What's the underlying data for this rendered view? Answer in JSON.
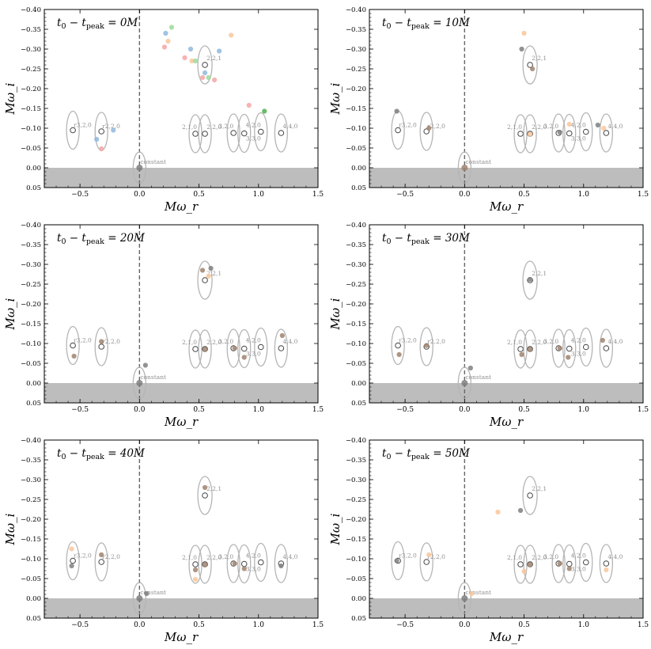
{
  "figure": {
    "xlabel": "Mω_r",
    "ylabel": "Mω_i",
    "constant_label": "constant"
  },
  "chart_data": [
    {
      "type": "scatter",
      "title": "t0 − tpeak = 0M",
      "title_main": "t",
      "title_sub1": "0",
      "title_mid": " − t",
      "title_sub2": "peak",
      "title_end": " = 0M",
      "xlim": [
        -0.8,
        1.5
      ],
      "ylim": [
        0.05,
        -0.4
      ],
      "xticks": [
        "−0.5",
        "0.0",
        "0.5",
        "1.0",
        "1.5"
      ],
      "yticks": [
        "−0.40",
        "−0.35",
        "−0.30",
        "−0.25",
        "−0.20",
        "−0.15",
        "−0.10",
        "−0.05",
        "0.00",
        "0.05"
      ],
      "grid": false,
      "points": [
        {
          "x": 0.22,
          "y": -0.34,
          "c": "#8fb8de"
        },
        {
          "x": 0.27,
          "y": -0.355,
          "c": "#9ed99b"
        },
        {
          "x": 0.24,
          "y": -0.32,
          "c": "#f8c79b"
        },
        {
          "x": 0.21,
          "y": -0.305,
          "c": "#f3a6a6"
        },
        {
          "x": 0.43,
          "y": -0.3,
          "c": "#8fb8de"
        },
        {
          "x": 0.67,
          "y": -0.295,
          "c": "#8fb8de"
        },
        {
          "x": 0.77,
          "y": -0.335,
          "c": "#f8c79b"
        },
        {
          "x": 0.38,
          "y": -0.278,
          "c": "#f3a6a6"
        },
        {
          "x": 0.44,
          "y": -0.27,
          "c": "#f8c79b"
        },
        {
          "x": 0.47,
          "y": -0.27,
          "c": "#9ed99b"
        },
        {
          "x": 0.55,
          "y": -0.24,
          "c": "#8fb8de"
        },
        {
          "x": 0.53,
          "y": -0.228,
          "c": "#f3a6a6"
        },
        {
          "x": 0.58,
          "y": -0.228,
          "c": "#9ed99b"
        },
        {
          "x": 0.63,
          "y": -0.222,
          "c": "#f3a6a6"
        },
        {
          "x": 0.92,
          "y": -0.158,
          "c": "#f3a6a6"
        },
        {
          "x": 1.05,
          "y": -0.143,
          "c": "#4fb04f"
        },
        {
          "x": -0.36,
          "y": -0.072,
          "c": "#8fb8de"
        },
        {
          "x": -0.22,
          "y": -0.095,
          "c": "#8fb8de"
        },
        {
          "x": -0.32,
          "y": -0.048,
          "c": "#f3a6a6"
        },
        {
          "x": 0.0,
          "y": 0.0,
          "c": "#7f7f7f"
        }
      ]
    },
    {
      "type": "scatter",
      "title": "t0 − tpeak = 10M",
      "title_main": "t",
      "title_sub1": "0",
      "title_mid": " − t",
      "title_sub2": "peak",
      "title_end": " = 10M",
      "xlim": [
        -0.8,
        1.5
      ],
      "ylim": [
        0.05,
        -0.4
      ],
      "xticks": [
        "−0.5",
        "0.0",
        "0.5",
        "1.0",
        "1.5"
      ],
      "yticks": [
        "−0.40",
        "−0.35",
        "−0.30",
        "−0.25",
        "−0.20",
        "−0.15",
        "−0.10",
        "−0.05",
        "0.00",
        "0.05"
      ],
      "grid": false,
      "points": [
        {
          "x": 0.5,
          "y": -0.34,
          "c": "#f8c79b"
        },
        {
          "x": 0.48,
          "y": -0.3,
          "c": "#7f7f7f"
        },
        {
          "x": 0.57,
          "y": -0.25,
          "c": "#a0826d"
        },
        {
          "x": 0.88,
          "y": -0.11,
          "c": "#f8c79b"
        },
        {
          "x": 1.12,
          "y": -0.108,
          "c": "#7f7f7f"
        },
        {
          "x": 1.17,
          "y": -0.1,
          "c": "#f8c79b"
        },
        {
          "x": 0.8,
          "y": -0.09,
          "c": "#7f7f7f"
        },
        {
          "x": -0.57,
          "y": -0.143,
          "c": "#7f7f7f"
        },
        {
          "x": -0.3,
          "y": -0.1,
          "c": "#a0826d"
        },
        {
          "x": 0.0,
          "y": 0.0,
          "c": "#a0826d"
        },
        {
          "x": 0.55,
          "y": -0.085,
          "c": "#f8c79b"
        }
      ]
    },
    {
      "type": "scatter",
      "title": "t0 − tpeak = 20M",
      "title_main": "t",
      "title_sub1": "0",
      "title_mid": " − t",
      "title_sub2": "peak",
      "title_end": " = 20M",
      "xlim": [
        -0.8,
        1.5
      ],
      "ylim": [
        0.05,
        -0.4
      ],
      "xticks": [
        "−0.5",
        "0.0",
        "0.5",
        "1.0",
        "1.5"
      ],
      "yticks": [
        "−0.40",
        "−0.35",
        "−0.30",
        "−0.25",
        "−0.20",
        "−0.15",
        "−0.10",
        "−0.05",
        "0.00",
        "0.05"
      ],
      "grid": false,
      "points": [
        {
          "x": 0.53,
          "y": -0.285,
          "c": "#a0826d"
        },
        {
          "x": 0.6,
          "y": -0.29,
          "c": "#7f7f7f"
        },
        {
          "x": 0.58,
          "y": -0.27,
          "c": "#f8c79b"
        },
        {
          "x": 1.2,
          "y": -0.12,
          "c": "#a0826d"
        },
        {
          "x": 0.88,
          "y": -0.065,
          "c": "#a0826d"
        },
        {
          "x": -0.32,
          "y": -0.105,
          "c": "#a0826d"
        },
        {
          "x": -0.55,
          "y": -0.068,
          "c": "#a0826d"
        },
        {
          "x": 0.05,
          "y": -0.045,
          "c": "#7f7f7f"
        },
        {
          "x": 0.0,
          "y": 0.0,
          "c": "#7f7f7f"
        },
        {
          "x": 0.55,
          "y": -0.085,
          "c": "#a0826d"
        },
        {
          "x": 0.8,
          "y": -0.088,
          "c": "#a0826d"
        }
      ]
    },
    {
      "type": "scatter",
      "title": "t0 − tpeak = 30M",
      "title_main": "t",
      "title_sub1": "0",
      "title_mid": " − t",
      "title_sub2": "peak",
      "title_end": " = 30M",
      "xlim": [
        -0.8,
        1.5
      ],
      "ylim": [
        0.05,
        -0.4
      ],
      "xticks": [
        "−0.5",
        "0.0",
        "0.5",
        "1.0",
        "1.5"
      ],
      "yticks": [
        "−0.40",
        "−0.35",
        "−0.30",
        "−0.25",
        "−0.20",
        "−0.15",
        "−0.10",
        "−0.05",
        "0.00",
        "0.05"
      ],
      "grid": false,
      "points": [
        {
          "x": 0.55,
          "y": -0.262,
          "c": "#7f7f7f"
        },
        {
          "x": 0.48,
          "y": -0.072,
          "c": "#a0826d"
        },
        {
          "x": 0.87,
          "y": -0.065,
          "c": "#a0826d"
        },
        {
          "x": 1.16,
          "y": -0.108,
          "c": "#a0826d"
        },
        {
          "x": -0.55,
          "y": -0.072,
          "c": "#a0826d"
        },
        {
          "x": -0.32,
          "y": -0.095,
          "c": "#a0826d"
        },
        {
          "x": 0.05,
          "y": -0.038,
          "c": "#7f7f7f"
        },
        {
          "x": 0.0,
          "y": 0.0,
          "c": "#7f7f7f"
        },
        {
          "x": 0.55,
          "y": -0.085,
          "c": "#a0826d"
        },
        {
          "x": 0.8,
          "y": -0.088,
          "c": "#a0826d"
        }
      ]
    },
    {
      "type": "scatter",
      "title": "t0 − tpeak = 40M",
      "title_main": "t",
      "title_sub1": "0",
      "title_mid": " − t",
      "title_sub2": "peak",
      "title_end": " = 40M",
      "xlim": [
        -0.8,
        1.5
      ],
      "ylim": [
        0.05,
        -0.4
      ],
      "xticks": [
        "−0.5",
        "0.0",
        "0.5",
        "1.0",
        "1.5"
      ],
      "yticks": [
        "−0.40",
        "−0.35",
        "−0.30",
        "−0.25",
        "−0.20",
        "−0.15",
        "−0.10",
        "−0.05",
        "0.00",
        "0.05"
      ],
      "grid": false,
      "points": [
        {
          "x": 0.55,
          "y": -0.28,
          "c": "#a0826d"
        },
        {
          "x": -0.57,
          "y": -0.125,
          "c": "#f8c79b"
        },
        {
          "x": -0.57,
          "y": -0.082,
          "c": "#7f7f7f"
        },
        {
          "x": -0.32,
          "y": -0.11,
          "c": "#a0826d"
        },
        {
          "x": 0.47,
          "y": -0.072,
          "c": "#a0826d"
        },
        {
          "x": 0.47,
          "y": -0.048,
          "c": "#f8c79b"
        },
        {
          "x": 0.88,
          "y": -0.075,
          "c": "#a0826d"
        },
        {
          "x": 1.19,
          "y": -0.082,
          "c": "#7f7f7f"
        },
        {
          "x": 0.06,
          "y": -0.012,
          "c": "#7f7f7f"
        },
        {
          "x": 0.0,
          "y": 0.0,
          "c": "#7f7f7f"
        },
        {
          "x": 0.55,
          "y": -0.085,
          "c": "#a0826d"
        },
        {
          "x": 0.8,
          "y": -0.088,
          "c": "#a0826d"
        }
      ]
    },
    {
      "type": "scatter",
      "title": "t0 − tpeak = 50M",
      "title_main": "t",
      "title_sub1": "0",
      "title_mid": " − t",
      "title_sub2": "peak",
      "title_end": " = 50M",
      "xlim": [
        -0.8,
        1.5
      ],
      "ylim": [
        0.05,
        -0.4
      ],
      "xticks": [
        "−0.5",
        "0.0",
        "0.5",
        "1.0",
        "1.5"
      ],
      "yticks": [
        "−0.40",
        "−0.35",
        "−0.30",
        "−0.25",
        "−0.20",
        "−0.15",
        "−0.10",
        "−0.05",
        "0.00",
        "0.05"
      ],
      "grid": false,
      "points": [
        {
          "x": 0.28,
          "y": -0.218,
          "c": "#f8c79b"
        },
        {
          "x": 0.47,
          "y": -0.222,
          "c": "#7f7f7f"
        },
        {
          "x": 0.5,
          "y": -0.068,
          "c": "#f8c79b"
        },
        {
          "x": 0.88,
          "y": -0.075,
          "c": "#a0826d"
        },
        {
          "x": 1.19,
          "y": -0.072,
          "c": "#f8c79b"
        },
        {
          "x": -0.3,
          "y": -0.11,
          "c": "#f8c79b"
        },
        {
          "x": -0.57,
          "y": -0.095,
          "c": "#7f7f7f"
        },
        {
          "x": 0.06,
          "y": -0.012,
          "c": "#f8c79b"
        },
        {
          "x": 0.0,
          "y": 0.0,
          "c": "#7f7f7f"
        },
        {
          "x": 0.55,
          "y": -0.085,
          "c": "#a0826d"
        },
        {
          "x": 0.8,
          "y": -0.088,
          "c": "#a0826d"
        }
      ]
    }
  ],
  "modes": [
    {
      "label": "2,2,1",
      "x": 0.55,
      "y": -0.26
    },
    {
      "label": "r3,2,0",
      "x": -0.56,
      "y": -0.095
    },
    {
      "label": "r2,2,0",
      "x": -0.32,
      "y": -0.092
    },
    {
      "label": "2,1,0",
      "x": 0.47,
      "y": -0.086
    },
    {
      "label": "2,2,0",
      "x": 0.55,
      "y": -0.086
    },
    {
      "label": "3,2,0",
      "x": 0.79,
      "y": -0.088
    },
    {
      "label": "3,3,0",
      "x": 0.88,
      "y": -0.087
    },
    {
      "label": "4,2,0",
      "x": 1.02,
      "y": -0.091
    },
    {
      "label": "4,4,0",
      "x": 1.19,
      "y": -0.088
    },
    {
      "label": "constant",
      "x": 0.0,
      "y": 0.0
    }
  ]
}
